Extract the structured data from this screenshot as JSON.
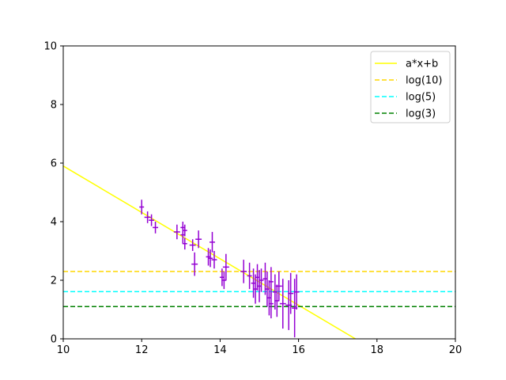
{
  "chart_data": {
    "type": "scatter",
    "title": "",
    "xlabel": "",
    "ylabel": "",
    "xlim": [
      10,
      20
    ],
    "ylim": [
      0,
      10
    ],
    "xticks": [
      "10",
      "12",
      "14",
      "16",
      "18",
      "20"
    ],
    "yticks": [
      "0",
      "2",
      "4",
      "6",
      "8",
      "10"
    ],
    "grid": false,
    "legend_position": "top-right",
    "series": [
      {
        "name": "a*x+b",
        "kind": "line",
        "color": "#ffff00",
        "style": "solid",
        "x": [
          10,
          17.45
        ],
        "y": [
          5.9,
          0
        ]
      },
      {
        "name": "log(10)",
        "kind": "hline",
        "color": "#ffd700",
        "style": "dashed",
        "y": 2.3
      },
      {
        "name": "log(5)",
        "kind": "hline",
        "color": "#00ffff",
        "style": "dashed",
        "y": 1.61
      },
      {
        "name": "log(3)",
        "kind": "hline",
        "color": "#008000",
        "style": "dashed",
        "y": 1.1
      }
    ],
    "errorbar_points": {
      "color": "#9400d3",
      "points": [
        {
          "x": 12.0,
          "y": 4.5,
          "xerr": 0.06,
          "yerr": 0.25
        },
        {
          "x": 12.15,
          "y": 4.15,
          "xerr": 0.08,
          "yerr": 0.2
        },
        {
          "x": 12.25,
          "y": 4.05,
          "xerr": 0.07,
          "yerr": 0.2
        },
        {
          "x": 12.35,
          "y": 3.8,
          "xerr": 0.07,
          "yerr": 0.2
        },
        {
          "x": 12.9,
          "y": 3.65,
          "xerr": 0.08,
          "yerr": 0.25
        },
        {
          "x": 13.05,
          "y": 3.8,
          "xerr": 0.06,
          "yerr": 0.2
        },
        {
          "x": 13.05,
          "y": 3.55,
          "xerr": 0.06,
          "yerr": 0.3
        },
        {
          "x": 13.1,
          "y": 3.7,
          "xerr": 0.06,
          "yerr": 0.2
        },
        {
          "x": 13.1,
          "y": 3.25,
          "xerr": 0.06,
          "yerr": 0.2
        },
        {
          "x": 13.3,
          "y": 3.2,
          "xerr": 0.08,
          "yerr": 0.2
        },
        {
          "x": 13.35,
          "y": 2.55,
          "xerr": 0.08,
          "yerr": 0.4
        },
        {
          "x": 13.45,
          "y": 3.4,
          "xerr": 0.08,
          "yerr": 0.3
        },
        {
          "x": 13.7,
          "y": 2.8,
          "xerr": 0.06,
          "yerr": 0.3
        },
        {
          "x": 13.75,
          "y": 2.75,
          "xerr": 0.06,
          "yerr": 0.3
        },
        {
          "x": 13.8,
          "y": 3.3,
          "xerr": 0.07,
          "yerr": 0.35
        },
        {
          "x": 13.85,
          "y": 2.7,
          "xerr": 0.07,
          "yerr": 0.3
        },
        {
          "x": 14.05,
          "y": 2.1,
          "xerr": 0.06,
          "yerr": 0.3
        },
        {
          "x": 14.1,
          "y": 2.0,
          "xerr": 0.06,
          "yerr": 0.3
        },
        {
          "x": 14.15,
          "y": 2.45,
          "xerr": 0.08,
          "yerr": 0.45
        },
        {
          "x": 14.6,
          "y": 2.3,
          "xerr": 0.08,
          "yerr": 0.4
        },
        {
          "x": 14.75,
          "y": 2.15,
          "xerr": 0.06,
          "yerr": 0.45
        },
        {
          "x": 14.85,
          "y": 1.9,
          "xerr": 0.06,
          "yerr": 0.5
        },
        {
          "x": 14.9,
          "y": 1.7,
          "xerr": 0.06,
          "yerr": 0.5
        },
        {
          "x": 14.95,
          "y": 2.1,
          "xerr": 0.06,
          "yerr": 0.45
        },
        {
          "x": 15.0,
          "y": 1.8,
          "xerr": 0.06,
          "yerr": 0.55
        },
        {
          "x": 15.05,
          "y": 2.0,
          "xerr": 0.06,
          "yerr": 0.4
        },
        {
          "x": 15.15,
          "y": 2.05,
          "xerr": 0.06,
          "yerr": 0.55
        },
        {
          "x": 15.2,
          "y": 1.7,
          "xerr": 0.06,
          "yerr": 0.6
        },
        {
          "x": 15.25,
          "y": 1.4,
          "xerr": 0.06,
          "yerr": 0.6
        },
        {
          "x": 15.3,
          "y": 1.95,
          "xerr": 0.06,
          "yerr": 0.5
        },
        {
          "x": 15.3,
          "y": 1.2,
          "xerr": 0.06,
          "yerr": 0.5
        },
        {
          "x": 15.4,
          "y": 1.6,
          "xerr": 0.06,
          "yerr": 0.6
        },
        {
          "x": 15.45,
          "y": 1.3,
          "xerr": 0.06,
          "yerr": 0.55
        },
        {
          "x": 15.5,
          "y": 1.8,
          "xerr": 0.08,
          "yerr": 0.5
        },
        {
          "x": 15.6,
          "y": 1.2,
          "xerr": 0.08,
          "yerr": 0.85
        },
        {
          "x": 15.75,
          "y": 1.15,
          "xerr": 0.08,
          "yerr": 0.85
        },
        {
          "x": 15.8,
          "y": 1.55,
          "xerr": 0.07,
          "yerr": 0.7
        },
        {
          "x": 15.9,
          "y": 1.05,
          "xerr": 0.07,
          "yerr": 1.0
        },
        {
          "x": 15.95,
          "y": 1.6,
          "xerr": 0.07,
          "yerr": 0.6
        }
      ]
    }
  }
}
